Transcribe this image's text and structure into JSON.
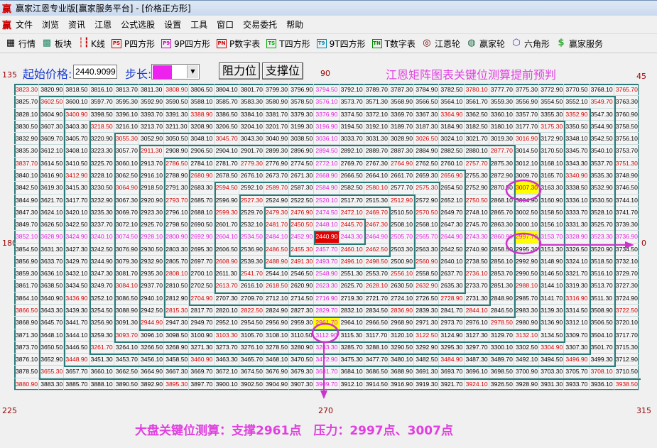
{
  "window": {
    "title": "赢家江恩专业版[赢家服务平台] - [价格正方形]",
    "logo": "赢"
  },
  "menu": [
    "文件",
    "浏览",
    "资讯",
    "江恩",
    "公式选股",
    "设置",
    "工具",
    "窗口",
    "交易委托",
    "帮助"
  ],
  "toolbar": [
    {
      "label": "行情",
      "icon": "table-icon",
      "glyph": "▦"
    },
    {
      "label": "板块",
      "icon": "blocks-icon",
      "glyph": "▩"
    },
    {
      "label": "K线",
      "icon": "candlestick-icon",
      "glyph": "┆┇"
    },
    {
      "label": "P四方形",
      "icon": "ps-icon",
      "glyph": "PS"
    },
    {
      "label": "9P四方形",
      "icon": "p9-icon",
      "glyph": "P9"
    },
    {
      "label": "P数字表",
      "icon": "pn-icon",
      "glyph": "PN"
    },
    {
      "label": "T四方形",
      "icon": "ts-icon",
      "glyph": "TS"
    },
    {
      "label": "9T四方形",
      "icon": "t9-icon",
      "glyph": "T9"
    },
    {
      "label": "T数字表",
      "icon": "tn-icon",
      "glyph": "TN"
    },
    {
      "label": "江恩轮",
      "icon": "gann-wheel-icon",
      "glyph": "◎"
    },
    {
      "label": "赢家轮",
      "icon": "winner-wheel-icon",
      "glyph": "◍"
    },
    {
      "label": "六角形",
      "icon": "hexagon-icon",
      "glyph": "⬡"
    },
    {
      "label": "赢家服务",
      "icon": "dollar-icon",
      "glyph": "$"
    }
  ],
  "controls": {
    "start_label": "起始价格:",
    "start_value": "2440.9099",
    "step_label": "步长:",
    "resist_button": "阻力位",
    "support_button": "支撑位"
  },
  "headline": "江恩矩阵图表关键位测算提前预判",
  "angles": {
    "tl": "135",
    "top": "90",
    "tr": "45",
    "left": "180",
    "right": "0",
    "bl": "225",
    "bottom": "270",
    "br": "315"
  },
  "caption": "大盘关键位测算：支撑2961点　压力：2997点、3007点",
  "colors": {
    "grid_line": "#2a7a7a",
    "cardinal": "#e020e0",
    "diagonal": "#d00000",
    "center_bg": "#e00000",
    "highlight_bg": "#ffff00",
    "annotation": "#cc33cc"
  },
  "center_value": "2440.90",
  "highlight_values": [
    "3007.30",
    "2997.70",
    "2961.70"
  ],
  "grid": [
    [
      "3823.30",
      "3820.90",
      "3818.50",
      "3816.10",
      "3813.70",
      "3811.30",
      "3808.90",
      "3806.50",
      "3804.10",
      "3801.70",
      "3799.30",
      "3796.90",
      "3794.50",
      "3792.10",
      "3789.70",
      "3787.30",
      "3784.90",
      "3782.50",
      "3780.10",
      "3777.70",
      "3775.30",
      "3772.90",
      "3770.50",
      "3768.10",
      "3765.70"
    ],
    [
      "3825.70",
      "3602.50",
      "3600.10",
      "3597.70",
      "3595.30",
      "3592.90",
      "3590.50",
      "3588.10",
      "3585.70",
      "3583.30",
      "3580.90",
      "3578.50",
      "3576.10",
      "3573.70",
      "3571.30",
      "3568.90",
      "3566.50",
      "3564.10",
      "3561.70",
      "3559.30",
      "3556.90",
      "3554.50",
      "3552.10",
      "3549.70",
      "3763.30"
    ],
    [
      "3828.10",
      "3604.90",
      "3400.90",
      "3398.50",
      "3396.10",
      "3393.70",
      "3391.30",
      "3388.90",
      "3386.50",
      "3384.10",
      "3381.70",
      "3379.30",
      "3376.90",
      "3374.50",
      "3372.10",
      "3369.70",
      "3367.30",
      "3364.90",
      "3362.50",
      "3360.10",
      "3357.70",
      "3355.30",
      "3352.90",
      "3547.30",
      "3760.90"
    ],
    [
      "3830.50",
      "3607.30",
      "3403.30",
      "3218.50",
      "3216.10",
      "3213.70",
      "3211.30",
      "3208.90",
      "3206.50",
      "3204.10",
      "3201.70",
      "3199.30",
      "3196.90",
      "3194.50",
      "3192.10",
      "3189.70",
      "3187.30",
      "3184.90",
      "3182.50",
      "3180.10",
      "3177.70",
      "3175.30",
      "3350.50",
      "3544.90",
      "3758.50"
    ],
    [
      "3832.90",
      "3609.70",
      "3405.70",
      "3220.90",
      "3055.30",
      "3052.90",
      "3050.50",
      "3048.10",
      "3045.70",
      "3043.30",
      "3040.90",
      "3038.50",
      "3036.10",
      "3033.70",
      "3031.30",
      "3028.90",
      "3026.50",
      "3024.10",
      "3021.70",
      "3019.30",
      "3016.90",
      "3172.90",
      "3348.10",
      "3542.50",
      "3756.10"
    ],
    [
      "3835.30",
      "3612.10",
      "3408.10",
      "3223.30",
      "3057.70",
      "2911.30",
      "2908.90",
      "2906.50",
      "2904.10",
      "2901.70",
      "2899.30",
      "2896.90",
      "2894.50",
      "2892.10",
      "2889.70",
      "2887.30",
      "2884.90",
      "2882.50",
      "2880.10",
      "2877.70",
      "3014.50",
      "3170.50",
      "3345.70",
      "3540.10",
      "3753.70"
    ],
    [
      "3837.70",
      "3614.50",
      "3410.50",
      "3225.70",
      "3060.10",
      "2913.70",
      "2786.50",
      "2784.10",
      "2781.70",
      "2779.30",
      "2776.90",
      "2774.50",
      "2772.10",
      "2769.70",
      "2767.30",
      "2764.90",
      "2762.50",
      "2760.10",
      "2757.70",
      "2875.30",
      "3012.10",
      "3168.10",
      "3343.30",
      "3537.70",
      "3751.30"
    ],
    [
      "3840.10",
      "3616.90",
      "3412.90",
      "3228.10",
      "3062.50",
      "2916.10",
      "2788.90",
      "2680.90",
      "2678.50",
      "2676.10",
      "2673.70",
      "2671.30",
      "2668.90",
      "2666.50",
      "2664.10",
      "2661.70",
      "2659.30",
      "2656.90",
      "2755.30",
      "2872.90",
      "3009.70",
      "3165.70",
      "3340.90",
      "3535.30",
      "3748.90"
    ],
    [
      "3842.50",
      "3619.30",
      "3415.30",
      "3230.50",
      "3064.90",
      "2918.50",
      "2791.30",
      "2683.30",
      "2594.50",
      "2592.10",
      "2589.70",
      "2587.30",
      "2584.90",
      "2582.50",
      "2580.10",
      "2577.70",
      "2575.30",
      "2654.50",
      "2752.90",
      "2870.50",
      "3007.30",
      "3163.30",
      "3338.50",
      "3532.90",
      "3746.50"
    ],
    [
      "3844.90",
      "3621.70",
      "3417.70",
      "3232.90",
      "3067.30",
      "2920.90",
      "2793.70",
      "2685.70",
      "2596.90",
      "2527.30",
      "2524.90",
      "2522.50",
      "2520.10",
      "2517.70",
      "2515.30",
      "2512.90",
      "2572.90",
      "2652.10",
      "2750.50",
      "2868.10",
      "3004.90",
      "3160.90",
      "3336.10",
      "3530.50",
      "3744.10"
    ],
    [
      "3847.30",
      "3624.10",
      "3420.10",
      "3235.30",
      "3069.70",
      "2923.30",
      "2796.10",
      "2688.10",
      "2599.30",
      "2529.70",
      "2479.30",
      "2476.90",
      "2474.50",
      "2472.10",
      "2469.70",
      "2510.50",
      "2570.50",
      "2649.70",
      "2748.10",
      "2865.70",
      "3002.50",
      "3158.50",
      "3333.70",
      "3528.10",
      "3741.70"
    ],
    [
      "3849.70",
      "3626.50",
      "3422.50",
      "3237.70",
      "3072.10",
      "2925.70",
      "2798.50",
      "2690.50",
      "2601.70",
      "2532.10",
      "2481.70",
      "2450.50",
      "2448.10",
      "2445.70",
      "2467.30",
      "2508.10",
      "2568.10",
      "2647.30",
      "2745.70",
      "2863.30",
      "3000.10",
      "3156.10",
      "3331.30",
      "3525.70",
      "3739.30"
    ],
    [
      "3852.10",
      "3628.90",
      "3424.90",
      "3240.10",
      "3074.50",
      "2928.10",
      "2800.90",
      "2692.90",
      "2604.10",
      "2534.50",
      "2484.10",
      "2452.90",
      "2440.90",
      "2443.30",
      "2464.90",
      "2505.70",
      "2565.70",
      "2644.90",
      "2743.30",
      "2860.90",
      "2997.70",
      "3153.70",
      "3328.90",
      "3523.30",
      "3736.90"
    ],
    [
      "3854.50",
      "3631.30",
      "3427.30",
      "3242.50",
      "3076.90",
      "2930.50",
      "2803.30",
      "2695.30",
      "2606.50",
      "2536.90",
      "2486.50",
      "2455.30",
      "2457.70",
      "2460.10",
      "2462.50",
      "2503.30",
      "2563.30",
      "2642.50",
      "2740.90",
      "2858.50",
      "2995.30",
      "3151.30",
      "3326.50",
      "3520.90",
      "3734.50"
    ],
    [
      "3856.90",
      "3633.70",
      "3429.70",
      "3244.90",
      "3079.30",
      "2932.90",
      "2805.70",
      "2697.70",
      "2608.90",
      "2539.30",
      "2488.90",
      "2491.30",
      "2493.70",
      "2496.10",
      "2498.50",
      "2500.90",
      "2560.90",
      "2640.10",
      "2738.50",
      "2856.10",
      "2992.90",
      "3148.90",
      "3324.10",
      "3518.50",
      "3732.10"
    ],
    [
      "3859.30",
      "3636.10",
      "3432.10",
      "3247.30",
      "3081.70",
      "2935.30",
      "2808.10",
      "2700.10",
      "2611.30",
      "2541.70",
      "2544.10",
      "2546.50",
      "2548.90",
      "2551.30",
      "2553.70",
      "2556.10",
      "2558.50",
      "2637.70",
      "2736.10",
      "2853.70",
      "2990.50",
      "3146.50",
      "3321.70",
      "3516.10",
      "3729.70"
    ],
    [
      "3861.70",
      "3638.50",
      "3434.50",
      "3249.70",
      "3084.10",
      "2937.70",
      "2810.50",
      "2702.50",
      "2613.70",
      "2616.10",
      "2618.50",
      "2620.90",
      "2623.30",
      "2625.70",
      "2628.10",
      "2630.50",
      "2632.90",
      "2635.30",
      "2733.70",
      "2851.30",
      "2988.10",
      "3144.10",
      "3319.30",
      "3513.70",
      "3727.30"
    ],
    [
      "3864.10",
      "3640.90",
      "3436.90",
      "3252.10",
      "3086.50",
      "2940.10",
      "2812.90",
      "2704.90",
      "2707.30",
      "2709.70",
      "2712.10",
      "2714.50",
      "2716.90",
      "2719.30",
      "2721.70",
      "2724.10",
      "2726.50",
      "2728.90",
      "2731.30",
      "2848.90",
      "2985.70",
      "3141.70",
      "3316.90",
      "3511.30",
      "3724.90"
    ],
    [
      "3866.50",
      "3643.30",
      "3439.30",
      "3254.50",
      "3088.90",
      "2942.50",
      "2815.30",
      "2817.70",
      "2820.10",
      "2822.50",
      "2824.90",
      "2827.30",
      "2829.70",
      "2832.10",
      "2834.50",
      "2836.90",
      "2839.30",
      "2841.70",
      "2844.10",
      "2846.50",
      "2983.30",
      "3139.30",
      "3314.50",
      "3508.90",
      "3722.50"
    ],
    [
      "3868.90",
      "3645.70",
      "3441.70",
      "3256.90",
      "3091.30",
      "2944.90",
      "2947.30",
      "2949.70",
      "2952.10",
      "2954.50",
      "2956.90",
      "2959.30",
      "2961.70",
      "2964.10",
      "2966.50",
      "2968.90",
      "2971.30",
      "2973.70",
      "2976.10",
      "2978.50",
      "2980.90",
      "3136.90",
      "3312.10",
      "3506.50",
      "3720.10"
    ],
    [
      "3871.30",
      "3648.10",
      "3444.10",
      "3259.30",
      "3093.70",
      "3096.10",
      "3098.50",
      "3100.90",
      "3103.30",
      "3105.70",
      "3108.10",
      "3110.50",
      "3112.90",
      "3115.30",
      "3117.70",
      "3120.10",
      "3122.50",
      "3124.90",
      "3127.30",
      "3129.70",
      "3132.10",
      "3134.50",
      "3309.70",
      "3504.10",
      "3717.70"
    ],
    [
      "3873.70",
      "3650.50",
      "3446.50",
      "3261.70",
      "3264.10",
      "3266.50",
      "3268.90",
      "3271.30",
      "3273.70",
      "3276.10",
      "3278.50",
      "3280.90",
      "3283.30",
      "3285.70",
      "3288.10",
      "3290.50",
      "3292.90",
      "3295.30",
      "3297.70",
      "3300.10",
      "3302.50",
      "3304.90",
      "3307.30",
      "3501.70",
      "3715.30"
    ],
    [
      "3876.10",
      "3652.90",
      "3448.90",
      "3451.30",
      "3453.70",
      "3456.10",
      "3458.50",
      "3460.90",
      "3463.30",
      "3465.70",
      "3468.10",
      "3470.50",
      "3472.90",
      "3475.30",
      "3477.70",
      "3480.10",
      "3482.50",
      "3484.90",
      "3487.30",
      "3489.70",
      "3492.10",
      "3494.50",
      "3496.90",
      "3499.30",
      "3712.90"
    ],
    [
      "3878.50",
      "3655.30",
      "3657.70",
      "3660.10",
      "3662.50",
      "3664.90",
      "3667.30",
      "3669.70",
      "3672.10",
      "3674.50",
      "3676.90",
      "3679.30",
      "3681.70",
      "3684.10",
      "3686.50",
      "3688.90",
      "3691.30",
      "3693.70",
      "3696.10",
      "3698.50",
      "3700.90",
      "3703.30",
      "3705.70",
      "3708.10",
      "3710.50"
    ],
    [
      "3880.90",
      "3883.30",
      "3885.70",
      "3888.10",
      "3890.50",
      "3892.90",
      "3895.30",
      "3897.70",
      "3900.10",
      "3902.50",
      "3904.90",
      "3907.30",
      "3909.70",
      "3912.10",
      "3914.50",
      "3916.90",
      "3919.30",
      "3921.70",
      "3924.10",
      "3926.50",
      "3928.90",
      "3931.30",
      "3933.70",
      "3936.10",
      "3938.50"
    ]
  ]
}
